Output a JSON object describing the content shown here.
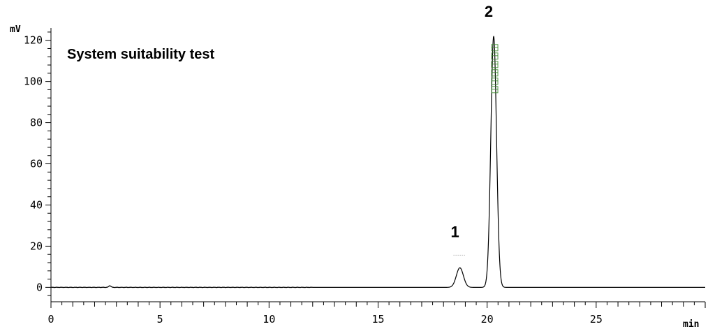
{
  "chart_data": {
    "type": "line",
    "title": "System suitability test",
    "xlabel": "min",
    "ylabel": "mV",
    "xlim": [
      0,
      30
    ],
    "ylim": [
      -7,
      126
    ],
    "x_ticks": [
      0,
      5,
      10,
      15,
      20,
      25
    ],
    "y_ticks": [
      0,
      20,
      40,
      60,
      80,
      100,
      120
    ],
    "grid": false,
    "baseline": 0,
    "peaks": [
      {
        "label": "1",
        "retention_time": 18.75,
        "height": 9.5,
        "width": 0.16
      },
      {
        "label": "2",
        "retention_time": 20.3,
        "height": 122,
        "width": 0.13
      }
    ],
    "minor_features": [
      {
        "x": 2.7,
        "height": 0.8
      }
    ],
    "annotation_color": "#3a8a2a",
    "line_color": "#000000"
  }
}
